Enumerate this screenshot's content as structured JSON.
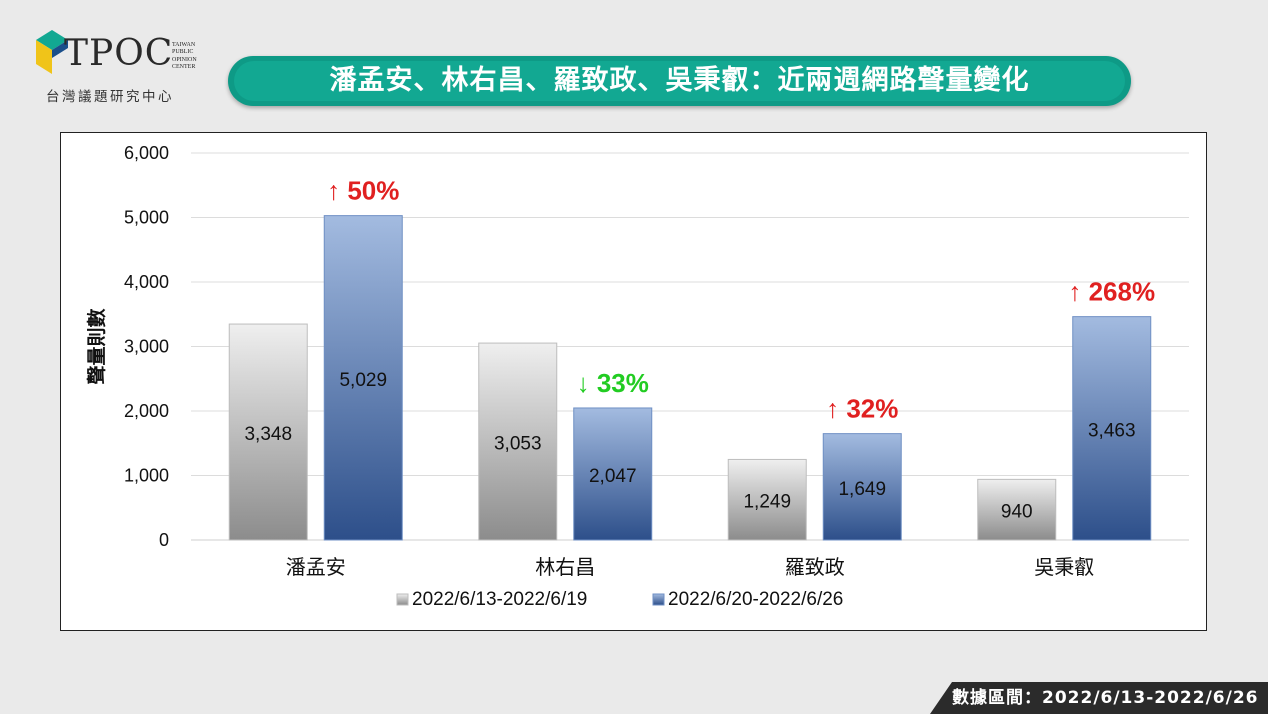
{
  "header": {
    "logo_text": "TPOC",
    "logo_small": [
      "TAIWAN",
      "PUBLIC",
      "OPINION",
      "CENTER"
    ],
    "logo_subtitle": "台灣議題研究中心",
    "title": "潘孟安、林右昌、羅致政、吳秉叡：近兩週網路聲量變化"
  },
  "footer": {
    "date_range": "數據區間：2022/6/13-2022/6/26"
  },
  "colors": {
    "banner": "#12a892",
    "series1": "#a9a9a9",
    "series2": "#4a6fa8",
    "increase": "#e02020",
    "decrease": "#22cc22"
  },
  "chart_data": {
    "type": "bar",
    "title": "",
    "xlabel": "",
    "ylabel": "聲量則數",
    "ylim": [
      0,
      6000
    ],
    "yticks": [
      0,
      1000,
      2000,
      3000,
      4000,
      5000,
      6000
    ],
    "ytick_labels": [
      "0",
      "1,000",
      "2,000",
      "3,000",
      "4,000",
      "5,000",
      "6,000"
    ],
    "grid": true,
    "legend": "bottom",
    "categories": [
      "潘孟安",
      "林右昌",
      "羅致政",
      "吳秉叡"
    ],
    "series": [
      {
        "name": "2022/6/13-2022/6/19",
        "values": [
          3348,
          3053,
          1249,
          940
        ],
        "labels": [
          "3,348",
          "3,053",
          "1,249",
          "940"
        ]
      },
      {
        "name": "2022/6/20-2022/6/26",
        "values": [
          5029,
          2047,
          1649,
          3463
        ],
        "labels": [
          "5,029",
          "2,047",
          "1,649",
          "3,463"
        ]
      }
    ],
    "annotations": [
      {
        "category": "潘孟安",
        "direction": "up",
        "text": "50%"
      },
      {
        "category": "林右昌",
        "direction": "down",
        "text": "33%"
      },
      {
        "category": "羅致政",
        "direction": "up",
        "text": "32%"
      },
      {
        "category": "吳秉叡",
        "direction": "up",
        "text": "268%"
      }
    ]
  }
}
